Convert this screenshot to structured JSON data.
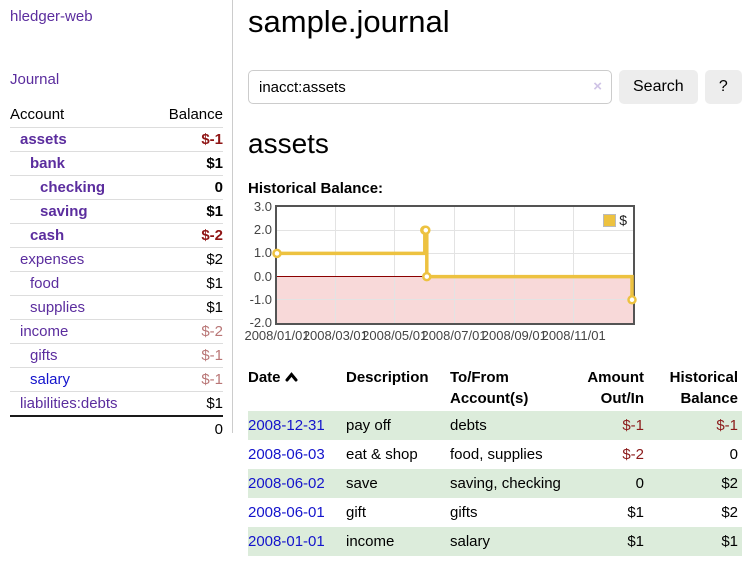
{
  "app": {
    "title": "hledger-web",
    "nav_journal": "Journal"
  },
  "sidebar": {
    "columns": {
      "account": "Account",
      "balance": "Balance"
    },
    "accounts": [
      {
        "name": "assets",
        "balance": "$-1"
      },
      {
        "name": "bank",
        "balance": "$1"
      },
      {
        "name": "checking",
        "balance": "0"
      },
      {
        "name": "saving",
        "balance": "$1"
      },
      {
        "name": "cash",
        "balance": "$-2"
      },
      {
        "name": "expenses",
        "balance": "$2"
      },
      {
        "name": "food",
        "balance": "$1"
      },
      {
        "name": "supplies",
        "balance": "$1"
      },
      {
        "name": "income",
        "balance": "$-2"
      },
      {
        "name": "gifts",
        "balance": "$-1"
      },
      {
        "name": "salary",
        "balance": "$-1"
      },
      {
        "name": "liabilities:debts",
        "balance": "$1"
      }
    ],
    "total": "0"
  },
  "header": {
    "title": "sample.journal"
  },
  "search": {
    "value": "inacct:assets",
    "clear_icon": "×",
    "button_label": "Search",
    "help_label": "?"
  },
  "account_page": {
    "title": "assets",
    "chart_label": "Historical Balance:"
  },
  "chart_data": {
    "type": "line",
    "title": "Historical Balance",
    "step": true,
    "legend_position": "top-right",
    "grid": true,
    "xlim": [
      "2008-01-01",
      "2009-01-01"
    ],
    "ylim": [
      -2,
      3
    ],
    "yticks": [
      {
        "label": "3.0",
        "v": 3
      },
      {
        "label": "2.0",
        "v": 2
      },
      {
        "label": "1.0",
        "v": 1
      },
      {
        "label": "0.0",
        "v": 0
      },
      {
        "label": "-1.0",
        "v": -1
      },
      {
        "label": "-2.0",
        "v": -2
      }
    ],
    "xticks": [
      {
        "label": "2008/01/01",
        "d": "2008-01-01"
      },
      {
        "label": "2008/03/01",
        "d": "2008-03-01"
      },
      {
        "label": "2008/05/01",
        "d": "2008-05-01"
      },
      {
        "label": "2008/07/01",
        "d": "2008-07-01"
      },
      {
        "label": "2008/09/01",
        "d": "2008-09-01"
      },
      {
        "label": "2008/11/01",
        "d": "2008-11-01"
      }
    ],
    "series": [
      {
        "name": "$",
        "color": "#edc240",
        "points": [
          [
            "2008-01-01",
            1
          ],
          [
            "2008-06-01",
            2
          ],
          [
            "2008-06-02",
            2
          ],
          [
            "2008-06-03",
            0
          ],
          [
            "2008-12-31",
            -1
          ]
        ]
      }
    ],
    "colors": {
      "line": "#edc240",
      "negative_region": "#f8d9d9",
      "zero_line": "#8b0000"
    }
  },
  "register": {
    "columns": [
      "Date",
      "Description",
      "To/From Account(s)",
      "Amount Out/In",
      "Historical Balance"
    ],
    "rows": [
      {
        "date": "2008-12-31",
        "description": "pay off",
        "accounts": "debts",
        "amount": "$-1",
        "balance": "$-1"
      },
      {
        "date": "2008-06-03",
        "description": "eat & shop",
        "accounts": "food, supplies",
        "amount": "$-2",
        "balance": "0"
      },
      {
        "date": "2008-06-02",
        "description": "save",
        "accounts": "saving, checking",
        "amount": "0",
        "balance": "$2"
      },
      {
        "date": "2008-06-01",
        "description": "gift",
        "accounts": "gifts",
        "amount": "$1",
        "balance": "$2"
      },
      {
        "date": "2008-01-01",
        "description": "income",
        "accounts": "salary",
        "amount": "$1",
        "balance": "$1"
      }
    ]
  },
  "colors": {
    "accent_purple": "#5b2d9e",
    "link_blue": "#1414cc",
    "negative_strong": "#8f1515",
    "negative_muted": "#b97676",
    "negative_table": "#8b1a1a",
    "row_green": "#dcecdb",
    "chart_gold": "#edc240",
    "chart_negative_fill": "#f8d9d9",
    "zero_line": "#8b0000"
  }
}
